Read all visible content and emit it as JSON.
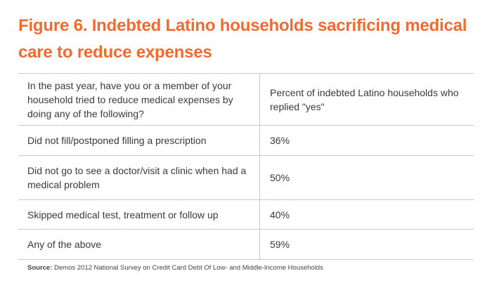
{
  "chart_data": {
    "type": "table",
    "title": "Figure 6. Indebted Latino households sacrificing medical care to reduce expenses",
    "columns": [
      "In the past year, have you or a member of your household tried to reduce medical expenses by doing any of the following?",
      "Percent of indebted Latino households who replied \"yes\""
    ],
    "rows": [
      {
        "label": "Did not fill/postponed filling a prescription",
        "value": "36%"
      },
      {
        "label": "Did not go to see a doctor/visit a clinic when had a medical problem",
        "value": "50%"
      },
      {
        "label": "Skipped medical test, treatment or follow up",
        "value": "40%"
      },
      {
        "label": "Any of the above",
        "value": "59%"
      }
    ],
    "source_label": "Source:",
    "source_text": "Demos 2012 National Survey on Credit Card Debt Of Low- and Middle-Income Households"
  },
  "colors": {
    "title": "#f26a2e",
    "rule": "#c8c8c8",
    "text": "#3a3a3a"
  }
}
